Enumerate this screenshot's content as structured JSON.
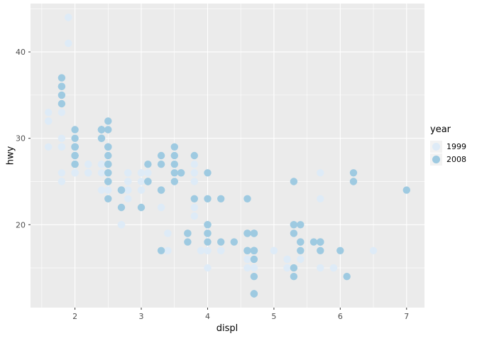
{
  "chart_data": {
    "type": "scatter",
    "title": "",
    "xlabel": "displ",
    "ylabel": "hwy",
    "xlim": [
      1.33,
      7.27
    ],
    "ylim": [
      10.4,
      45.6
    ],
    "x_major_ticks": [
      2,
      3,
      4,
      5,
      6,
      7
    ],
    "x_minor_ticks": [
      1.5,
      2.5,
      3.5,
      4.5,
      5.5,
      6.5
    ],
    "y_major_ticks": [
      20,
      30,
      40
    ],
    "y_minor_ticks": [
      15,
      25,
      35,
      45
    ],
    "grid": true,
    "panel_background": "#EBEBEB",
    "gridline_color": "#FFFFFF",
    "tick_color": "#333333",
    "tick_label_color": "#4D4D4D",
    "point_radius": 5.2,
    "legend": {
      "title": "year",
      "position": "right",
      "key_fill": "#F2F2F2"
    },
    "series": [
      {
        "name": "1999",
        "color": "#DEEBF7",
        "points": [
          [
            1.8,
            29
          ],
          [
            1.8,
            29
          ],
          [
            2.8,
            26
          ],
          [
            2.8,
            26
          ],
          [
            1.8,
            26
          ],
          [
            1.8,
            25
          ],
          [
            2.8,
            25
          ],
          [
            2.8,
            25
          ],
          [
            2.8,
            24
          ],
          [
            5.7,
            17
          ],
          [
            5.7,
            26
          ],
          [
            5.7,
            23
          ],
          [
            5.7,
            15
          ],
          [
            6.5,
            17
          ],
          [
            2.4,
            27
          ],
          [
            3.1,
            26
          ],
          [
            2.4,
            24
          ],
          [
            3.0,
            24
          ],
          [
            3.3,
            22
          ],
          [
            3.3,
            22
          ],
          [
            3.8,
            22
          ],
          [
            3.8,
            21
          ],
          [
            3.9,
            17
          ],
          [
            3.9,
            17
          ],
          [
            5.2,
            16
          ],
          [
            5.2,
            15
          ],
          [
            3.9,
            17
          ],
          [
            5.2,
            16
          ],
          [
            5.9,
            15
          ],
          [
            5.2,
            15
          ],
          [
            5.2,
            16
          ],
          [
            5.9,
            15
          ],
          [
            4.6,
            17
          ],
          [
            5.4,
            17
          ],
          [
            4.0,
            17
          ],
          [
            4.0,
            17
          ],
          [
            4.0,
            17
          ],
          [
            5.0,
            17
          ],
          [
            4.2,
            17
          ],
          [
            4.2,
            17
          ],
          [
            4.6,
            16
          ],
          [
            4.6,
            16
          ],
          [
            3.8,
            26
          ],
          [
            3.8,
            25
          ],
          [
            4.6,
            23
          ],
          [
            4.6,
            23
          ],
          [
            1.6,
            33
          ],
          [
            1.6,
            32
          ],
          [
            1.6,
            32
          ],
          [
            1.6,
            29
          ],
          [
            1.6,
            32
          ],
          [
            2.4,
            26
          ],
          [
            2.4,
            27
          ],
          [
            2.5,
            26
          ],
          [
            2.5,
            26
          ],
          [
            2.0,
            26
          ],
          [
            2.0,
            29
          ],
          [
            4.0,
            20
          ],
          [
            4.7,
            17
          ],
          [
            4.0,
            15
          ],
          [
            4.6,
            15
          ],
          [
            5.4,
            17
          ],
          [
            5.4,
            16
          ],
          [
            4.0,
            17
          ],
          [
            5.0,
            17
          ],
          [
            2.4,
            27
          ],
          [
            2.4,
            27
          ],
          [
            3.0,
            26
          ],
          [
            3.0,
            25
          ],
          [
            3.3,
            17
          ],
          [
            3.1,
            26
          ],
          [
            3.8,
            26
          ],
          [
            3.8,
            27
          ],
          [
            2.5,
            25
          ],
          [
            2.5,
            24
          ],
          [
            2.2,
            26
          ],
          [
            2.2,
            26
          ],
          [
            2.5,
            26
          ],
          [
            2.5,
            26
          ],
          [
            2.7,
            20
          ],
          [
            2.7,
            20
          ],
          [
            3.4,
            19
          ],
          [
            3.4,
            17
          ],
          [
            2.2,
            27
          ],
          [
            2.2,
            27
          ],
          [
            3.0,
            26
          ],
          [
            3.0,
            26
          ],
          [
            2.2,
            26
          ],
          [
            2.2,
            27
          ],
          [
            3.0,
            26
          ],
          [
            1.8,
            30
          ],
          [
            1.8,
            33
          ],
          [
            1.8,
            35
          ],
          [
            4.7,
            15
          ],
          [
            2.7,
            20
          ],
          [
            2.7,
            20
          ],
          [
            3.4,
            17
          ],
          [
            3.4,
            19
          ],
          [
            2.0,
            29
          ],
          [
            2.0,
            26
          ],
          [
            2.8,
            24
          ],
          [
            1.9,
            44
          ],
          [
            2.0,
            29
          ],
          [
            2.0,
            26
          ],
          [
            2.8,
            23
          ],
          [
            2.8,
            24
          ],
          [
            1.9,
            44
          ],
          [
            1.9,
            41
          ],
          [
            2.0,
            26
          ],
          [
            2.0,
            26
          ],
          [
            1.8,
            29
          ],
          [
            1.8,
            29
          ],
          [
            2.8,
            26
          ],
          [
            2.8,
            26
          ]
        ]
      },
      {
        "name": "2008",
        "color": "#9ECAE1",
        "points": [
          [
            2.0,
            31
          ],
          [
            2.0,
            30
          ],
          [
            3.1,
            27
          ],
          [
            2.0,
            28
          ],
          [
            2.0,
            27
          ],
          [
            3.1,
            25
          ],
          [
            3.1,
            25
          ],
          [
            3.1,
            25
          ],
          [
            4.2,
            23
          ],
          [
            5.3,
            20
          ],
          [
            5.3,
            15
          ],
          [
            5.3,
            20
          ],
          [
            6.0,
            17
          ],
          [
            6.2,
            26
          ],
          [
            6.2,
            25
          ],
          [
            7.0,
            24
          ],
          [
            5.3,
            19
          ],
          [
            5.3,
            14
          ],
          [
            2.4,
            30
          ],
          [
            3.5,
            29
          ],
          [
            3.6,
            26
          ],
          [
            3.3,
            24
          ],
          [
            3.3,
            24
          ],
          [
            3.3,
            17
          ],
          [
            3.8,
            23
          ],
          [
            4.0,
            23
          ],
          [
            3.7,
            19
          ],
          [
            3.7,
            18
          ],
          [
            4.7,
            19
          ],
          [
            4.7,
            19
          ],
          [
            4.7,
            12
          ],
          [
            4.7,
            17
          ],
          [
            4.7,
            17
          ],
          [
            5.7,
            18
          ],
          [
            4.7,
            17
          ],
          [
            4.7,
            16
          ],
          [
            4.7,
            17
          ],
          [
            4.7,
            17
          ],
          [
            4.7,
            12
          ],
          [
            4.7,
            12
          ],
          [
            5.7,
            17
          ],
          [
            5.4,
            18
          ],
          [
            4.0,
            19
          ],
          [
            4.6,
            19
          ],
          [
            4.6,
            17
          ],
          [
            4.6,
            17
          ],
          [
            5.4,
            17
          ],
          [
            4.0,
            26
          ],
          [
            4.6,
            23
          ],
          [
            5.4,
            20
          ],
          [
            1.8,
            34
          ],
          [
            1.8,
            36
          ],
          [
            1.8,
            36
          ],
          [
            2.0,
            29
          ],
          [
            2.4,
            30
          ],
          [
            2.4,
            31
          ],
          [
            3.3,
            28
          ],
          [
            2.0,
            28
          ],
          [
            2.0,
            27
          ],
          [
            2.7,
            24
          ],
          [
            2.7,
            24
          ],
          [
            2.7,
            24
          ],
          [
            3.0,
            22
          ],
          [
            3.7,
            19
          ],
          [
            4.7,
            14
          ],
          [
            4.7,
            19
          ],
          [
            5.7,
            18
          ],
          [
            6.1,
            14
          ],
          [
            4.2,
            18
          ],
          [
            4.4,
            18
          ],
          [
            5.4,
            18
          ],
          [
            4.0,
            19
          ],
          [
            4.6,
            19
          ],
          [
            2.5,
            31
          ],
          [
            2.5,
            32
          ],
          [
            3.5,
            27
          ],
          [
            3.5,
            26
          ],
          [
            3.5,
            25
          ],
          [
            4.0,
            20
          ],
          [
            5.6,
            18
          ],
          [
            3.8,
            28
          ],
          [
            5.3,
            25
          ],
          [
            2.5,
            27
          ],
          [
            2.5,
            25
          ],
          [
            2.5,
            26
          ],
          [
            2.5,
            23
          ],
          [
            2.5,
            27
          ],
          [
            2.5,
            25
          ],
          [
            2.5,
            27
          ],
          [
            2.5,
            26
          ],
          [
            4.0,
            20
          ],
          [
            4.7,
            17
          ],
          [
            2.4,
            31
          ],
          [
            2.4,
            31
          ],
          [
            3.5,
            28
          ],
          [
            2.4,
            31
          ],
          [
            2.4,
            31
          ],
          [
            3.3,
            27
          ],
          [
            1.8,
            37
          ],
          [
            1.8,
            35
          ],
          [
            5.7,
            18
          ],
          [
            2.7,
            22
          ],
          [
            4.0,
            18
          ],
          [
            2.0,
            29
          ],
          [
            2.0,
            29
          ],
          [
            2.0,
            29
          ],
          [
            2.0,
            29
          ],
          [
            2.5,
            29
          ],
          [
            2.5,
            29
          ],
          [
            2.5,
            28
          ],
          [
            2.5,
            29
          ],
          [
            2.0,
            28
          ],
          [
            2.0,
            29
          ],
          [
            3.6,
            26
          ]
        ]
      }
    ]
  }
}
